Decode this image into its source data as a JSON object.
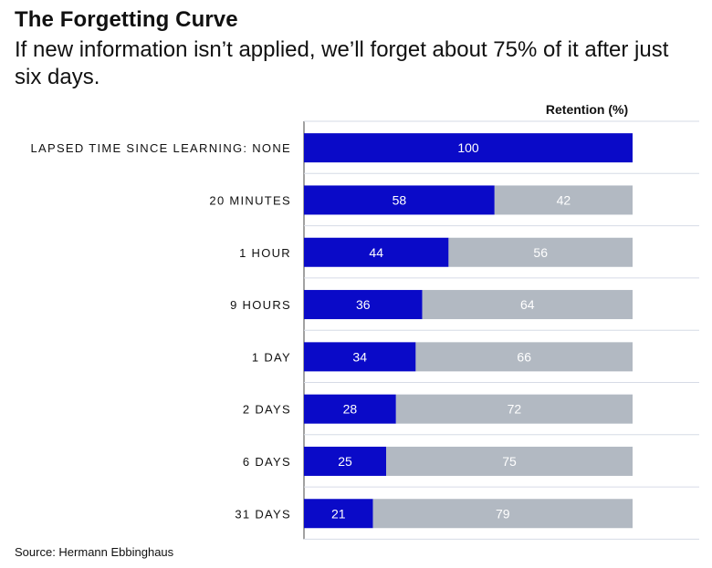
{
  "title": "The Forgetting Curve",
  "subtitle": "If new information isn’t applied, we’ll forget about 75% of it after just six days.",
  "source": "Source: Hermann Ebbinghaus",
  "colors": {
    "retention": "#0a0ac8",
    "forgotten": "#b2b9c2",
    "gridline": "#d6dbe6"
  },
  "chart_data": {
    "type": "bar",
    "orientation": "horizontal",
    "stacked": true,
    "categories": [
      "LAPSED TIME SINCE LEARNING: NONE",
      "20 MINUTES",
      "1 HOUR",
      "9 HOURS",
      "1 DAY",
      "2 DAYS",
      "6 DAYS",
      "31 DAYS"
    ],
    "series": [
      {
        "name": "Retention (%)",
        "values": [
          100,
          58,
          44,
          36,
          34,
          28,
          25,
          21
        ]
      },
      {
        "values": [
          0,
          42,
          56,
          64,
          66,
          72,
          75,
          79
        ]
      }
    ],
    "xlim": [
      0,
      100
    ],
    "legend_position": "top-right",
    "grid": "horizontal separators"
  }
}
